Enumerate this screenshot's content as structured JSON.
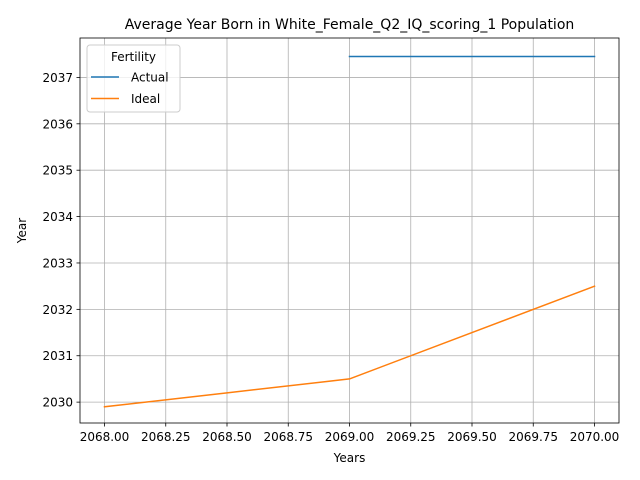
{
  "chart_data": {
    "type": "line",
    "title": "Average Year Born in White_Female_Q2_IQ_scoring_1 Population",
    "xlabel": "Years",
    "ylabel": "Year",
    "xlim": [
      2067.9,
      2070.1
    ],
    "ylim": [
      2029.55,
      2037.85
    ],
    "grid": true,
    "x_ticks": [
      2068.0,
      2068.25,
      2068.5,
      2068.75,
      2069.0,
      2069.25,
      2069.5,
      2069.75,
      2070.0
    ],
    "x_tick_labels": [
      "2068.00",
      "2068.25",
      "2068.50",
      "2068.75",
      "2069.00",
      "2069.25",
      "2069.50",
      "2069.75",
      "2070.00"
    ],
    "y_ticks": [
      2030,
      2031,
      2032,
      2033,
      2034,
      2035,
      2036,
      2037
    ],
    "y_tick_labels": [
      "2030",
      "2031",
      "2032",
      "2033",
      "2034",
      "2035",
      "2036",
      "2037"
    ],
    "legend": {
      "title": "Fertility",
      "placement": "top-left"
    },
    "series": [
      {
        "name": "Actual",
        "color": "#1f77b4",
        "x": [
          2069.0,
          2070.0
        ],
        "y": [
          2037.45,
          2037.45
        ]
      },
      {
        "name": "Ideal",
        "color": "#ff7f0e",
        "x": [
          2068.0,
          2068.5,
          2069.0,
          2069.5,
          2070.0
        ],
        "y": [
          2029.9,
          2030.2,
          2030.5,
          2031.5,
          2032.5
        ]
      }
    ]
  }
}
